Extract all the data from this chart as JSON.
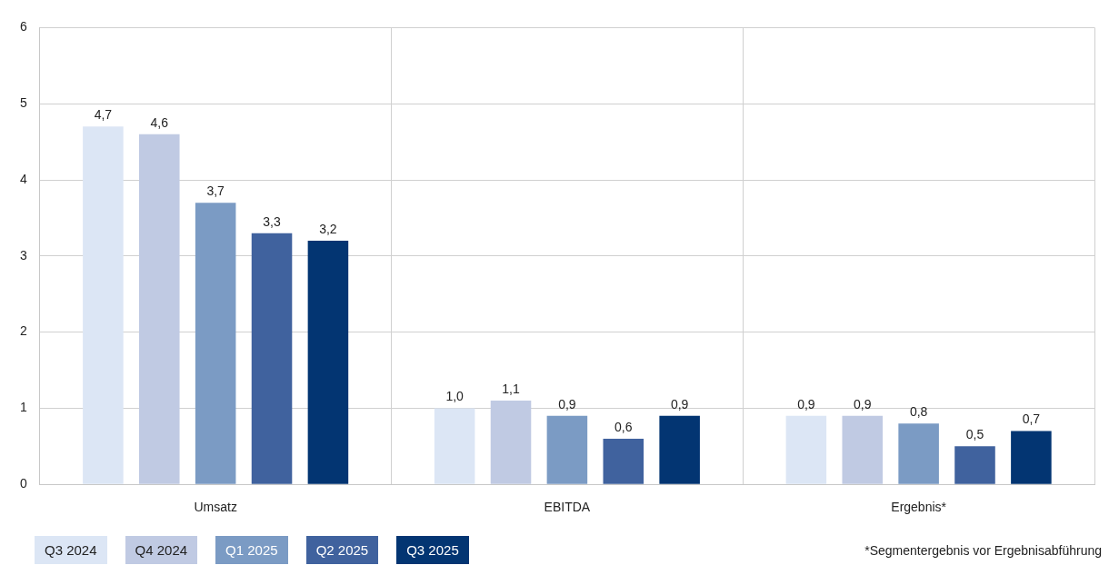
{
  "chart_data": {
    "type": "bar",
    "categories": [
      "Umsatz",
      "EBITDA",
      "Ergebnis*"
    ],
    "series": [
      {
        "name": "Q3 2024",
        "color": "#dce6f5",
        "values": [
          4.7,
          1.0,
          0.9
        ],
        "value_labels": [
          "4,7",
          "1,0",
          "0,9"
        ]
      },
      {
        "name": "Q4 2024",
        "color": "#c0cae3",
        "values": [
          4.6,
          1.1,
          0.9
        ],
        "value_labels": [
          "4,6",
          "1,1",
          "0,9"
        ]
      },
      {
        "name": "Q1 2025",
        "color": "#7b9bc4",
        "values": [
          3.7,
          0.9,
          0.8
        ],
        "value_labels": [
          "3,7",
          "0,9",
          "0,8"
        ]
      },
      {
        "name": "Q2 2025",
        "color": "#40629e",
        "values": [
          3.3,
          0.6,
          0.5
        ],
        "value_labels": [
          "3,3",
          "0,6",
          "0,5"
        ]
      },
      {
        "name": "Q3 2025",
        "color": "#033572",
        "values": [
          3.2,
          0.9,
          0.7
        ],
        "value_labels": [
          "3,2",
          "0,9",
          "0,7"
        ]
      }
    ],
    "ylim": [
      0,
      6
    ],
    "yticks": [
      0,
      1,
      2,
      3,
      4,
      5,
      6
    ],
    "grid": true,
    "legend": "bottom left",
    "annotations": [
      "*Segmentergebnis vor Ergebnisabführung"
    ]
  }
}
